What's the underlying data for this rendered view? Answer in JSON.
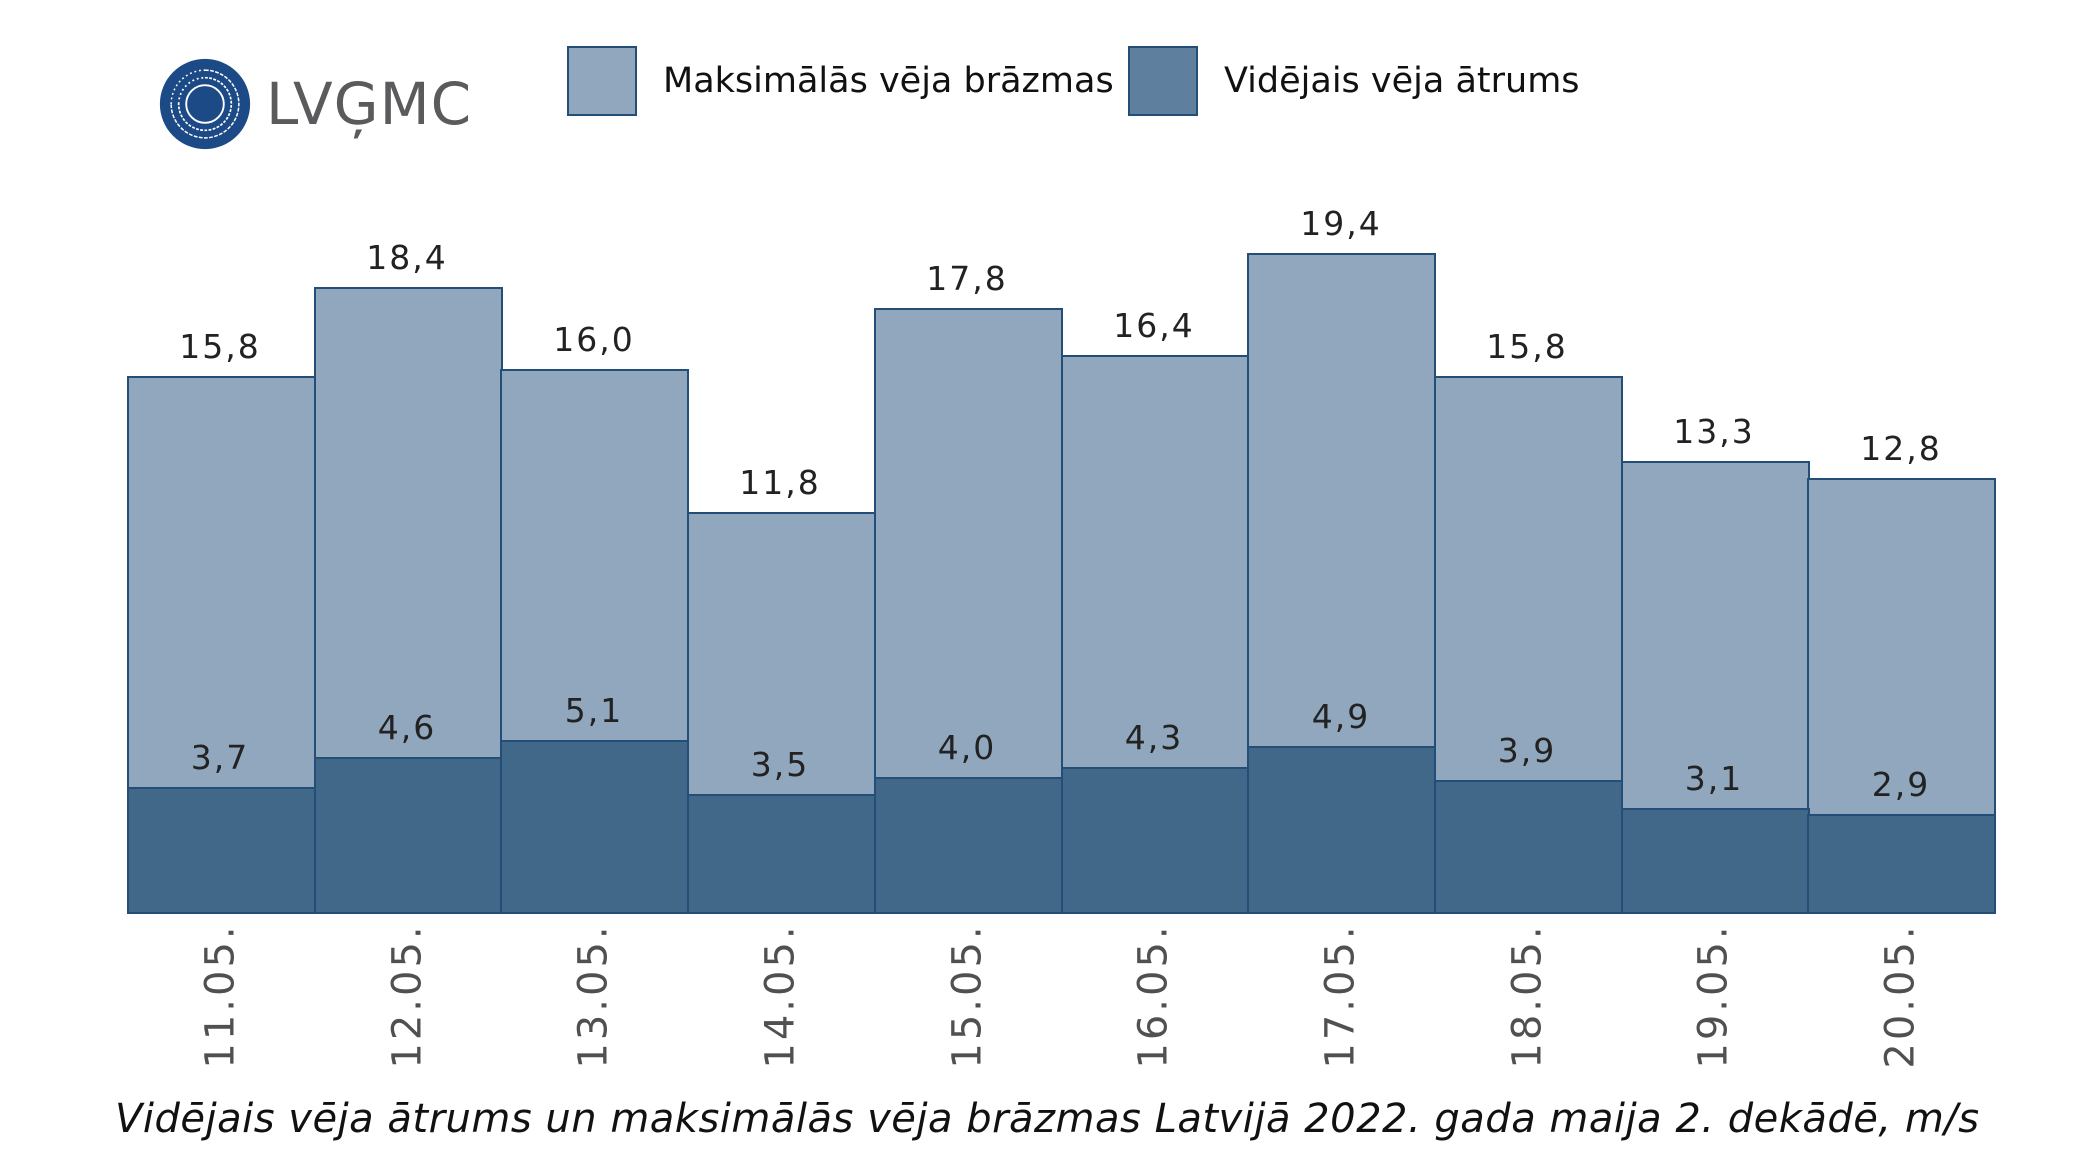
{
  "logo": {
    "text": "LVĢMC",
    "icon": "lvgmc-circle-logo-icon",
    "color": "#1b4a86"
  },
  "legend": [
    {
      "label": "Maksimālās vēja brāzmas",
      "color": "#91a7bd"
    },
    {
      "label": "Vidējais vēja ātrums",
      "color": "#5f7f9f"
    }
  ],
  "caption": "Vidējais vēja ātrums un maksimālās vēja brāzmas Latvijā 2022. gada maija 2. dekādē, m/s",
  "colors": {
    "max_fill": "#91a7bd",
    "avg_fill": "#416789",
    "outline": "#234e78"
  },
  "chart_data": {
    "type": "bar",
    "layout": "overlapping (avg drawn in front of max)",
    "title": "Vidējais vēja ātrums un maksimālās vēja brāzmas Latvijā 2022. gada maija 2. dekādē, m/s",
    "xlabel": "",
    "ylabel": "m/s",
    "categories": [
      "11.05.",
      "12.05.",
      "13.05.",
      "14.05.",
      "15.05.",
      "16.05.",
      "17.05.",
      "18.05.",
      "19.05.",
      "20.05."
    ],
    "series": [
      {
        "name": "Maksimālās vēja brāzmas",
        "values": [
          15.8,
          18.4,
          16.0,
          11.8,
          17.8,
          16.4,
          19.4,
          15.8,
          13.3,
          12.8
        ],
        "labels": [
          "15,8",
          "18,4",
          "16,0",
          "11,8",
          "17,8",
          "16,4",
          "19,4",
          "15,8",
          "13,3",
          "12,8"
        ]
      },
      {
        "name": "Vidējais vēja ātrums",
        "values": [
          3.7,
          4.6,
          5.1,
          3.5,
          4.0,
          4.3,
          4.9,
          3.9,
          3.1,
          2.9
        ],
        "labels": [
          "3,7",
          "4,6",
          "5,1",
          "3,5",
          "4,0",
          "4,3",
          "4,9",
          "3,9",
          "3,1",
          "2,9"
        ]
      }
    ],
    "ylim": [
      0,
      20
    ],
    "grid": false,
    "y_axis_visible": false,
    "legend_position": "top",
    "x_tick_rotation": -90
  }
}
